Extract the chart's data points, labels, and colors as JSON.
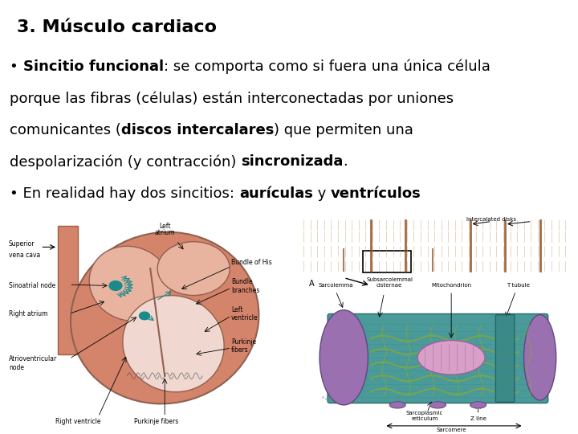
{
  "title": "3. Músculo cardiaco",
  "title_bg": "#ccffcc",
  "bg_color": "#ffffff",
  "title_fontsize": 16,
  "title_fontstyle": "bold",
  "text_color": "#000000",
  "border_color": "#999999",
  "bullet1_lines": [
    [
      {
        "text": "• ",
        "bold": false
      },
      {
        "text": "Sincitio funcional",
        "bold": true
      },
      {
        "text": ": se comporta como si fuera una única célula",
        "bold": false
      }
    ],
    [
      {
        "text": "porque las fibras (células) están interconectadas por uniones",
        "bold": false
      }
    ],
    [
      {
        "text": "comunicantes (",
        "bold": false
      },
      {
        "text": "discos intercalares",
        "bold": true
      },
      {
        "text": ") que permiten una",
        "bold": false
      }
    ],
    [
      {
        "text": "despolarización (y contracción) ",
        "bold": false
      },
      {
        "text": "sincronizada",
        "bold": true
      },
      {
        "text": ".",
        "bold": false
      }
    ]
  ],
  "bullet2_line": [
    {
      "text": "• En realidad hay dos sincitios: ",
      "bold": false
    },
    {
      "text": "aurículas",
      "bold": true
    },
    {
      "text": " y ",
      "bold": false
    },
    {
      "text": "ventrículos",
      "bold": true
    }
  ],
  "font_size": 13,
  "heart_color_outer": "#d4846a",
  "heart_color_inner": "#e8b4a0",
  "heart_color_chamber": "#f0d8d0",
  "vena_color": "#d4846a",
  "node_color": "#1a8a8a",
  "arrow_color": "#1a8a8a",
  "muscle_fiber_bg": "#deb887",
  "muscle_fiber_stripe": "#c8a06a",
  "intercalated_color": "#8b4513",
  "cell_teal": "#4a9a9a",
  "cell_purple": "#9a70b0",
  "cell_green": "#8aaa30",
  "cell_pink": "#c880b0"
}
